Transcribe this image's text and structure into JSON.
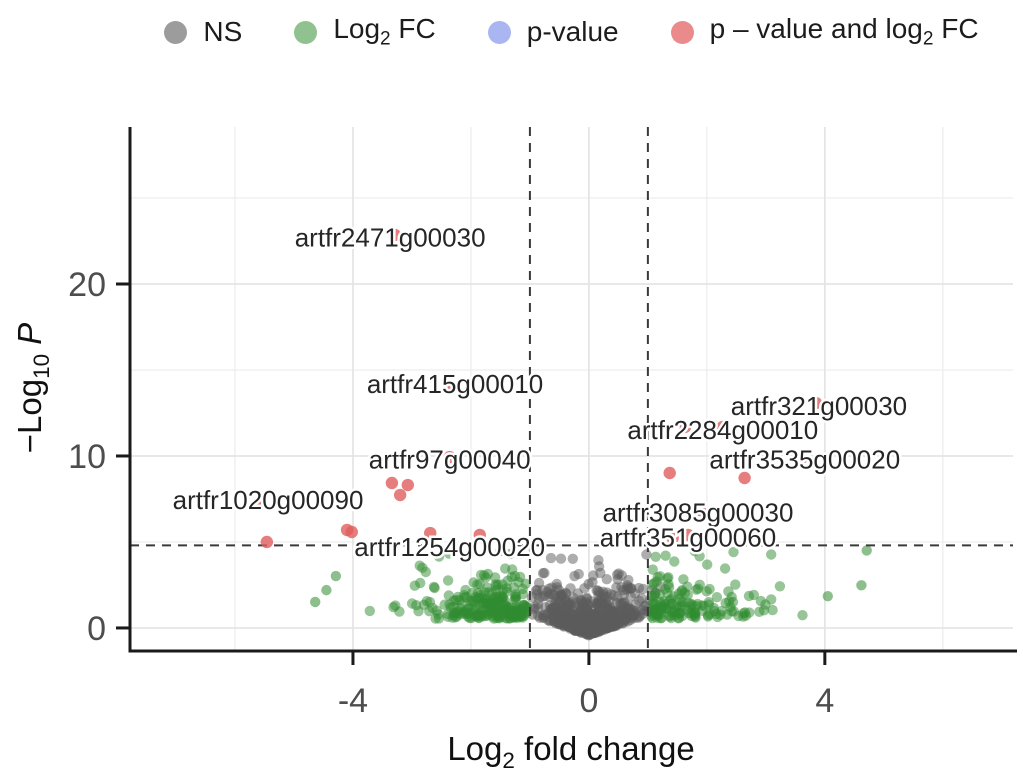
{
  "chart_data": {
    "type": "scatter",
    "subtype": "volcano-plot",
    "title": "",
    "xlabel_segments": [
      {
        "t": "Log"
      },
      {
        "s": "2"
      },
      {
        "t": " fold change"
      }
    ],
    "ylabel_segments": [
      {
        "t": "−Log"
      },
      {
        "s": "10"
      },
      {
        "t": " "
      },
      {
        "i": "P"
      }
    ],
    "xlim": [
      -7.78,
      7.19
    ],
    "ylim": [
      -1.34,
      29.13
    ],
    "x_ticks": [
      {
        "v": -4,
        "label": "-4"
      },
      {
        "v": 0,
        "label": "0"
      },
      {
        "v": 4,
        "label": "4"
      }
    ],
    "y_ticks": [
      {
        "v": 0,
        "label": "0"
      },
      {
        "v": 10,
        "label": "10"
      },
      {
        "v": 20,
        "label": "20"
      }
    ],
    "x_major_grid": [
      -4,
      0,
      4
    ],
    "x_minor_grid": [
      -6,
      -2,
      2,
      6
    ],
    "y_major_grid": [
      0,
      10,
      20
    ],
    "y_minor_grid": [
      5,
      15,
      25
    ],
    "grid": true,
    "thresholds": {
      "vlines": [
        -1,
        1
      ],
      "hline": 4.8
    },
    "legend": {
      "position": "top",
      "items": [
        {
          "key": "ns",
          "segments": [
            {
              "t": "NS"
            }
          ],
          "color": "#9c9c9c"
        },
        {
          "key": "log2fc",
          "segments": [
            {
              "t": "Log"
            },
            {
              "s": "2"
            },
            {
              "t": " FC"
            }
          ],
          "color": "#8fc28f"
        },
        {
          "key": "pvalue",
          "segments": [
            {
              "t": "p-value"
            }
          ],
          "color": "#a9b6f1"
        },
        {
          "key": "p-and-log2fc",
          "segments": [
            {
              "t": "p – value and log"
            },
            {
              "s": "2"
            },
            {
              "t": " FC"
            }
          ],
          "color": "#eb8a8a"
        }
      ]
    },
    "colors": {
      "ns_point": "#5c5c5c",
      "log2fc_point": "#2f8b2f",
      "sig_point": "#e05e5e",
      "grid_major": "#e4e4e4",
      "grid_minor": "#ededed",
      "axis": "#1a1a1a",
      "dashed_line": "#3a3a3a",
      "tick_label": "#4d4d4d",
      "gene_label": "#262626"
    },
    "labeled_genes": [
      {
        "gene": "artfr2471g00030",
        "x": -3.37,
        "y": 22.7
      },
      {
        "gene": "artfr415g00010",
        "x": -2.27,
        "y": 14.2
      },
      {
        "gene": "artfr97g00040",
        "x": -2.36,
        "y": 9.8
      },
      {
        "gene": "artfr1020g00090",
        "x": -5.44,
        "y": 7.45
      },
      {
        "gene": "artfr1254g00020",
        "x": -2.36,
        "y": 4.7
      },
      {
        "gene": "artfr321g00030",
        "x": 3.9,
        "y": 12.9
      },
      {
        "gene": "artfr2284g00010",
        "x": 2.27,
        "y": 11.5
      },
      {
        "gene": "artfr3535g00020",
        "x": 3.66,
        "y": 9.8
      },
      {
        "gene": "artfr3085g00030",
        "x": 1.85,
        "y": 6.7
      },
      {
        "gene": "artfr351g00060",
        "x": 1.68,
        "y": 5.25
      }
    ],
    "significant_points": [
      [
        -3.29,
        22.85
      ],
      [
        -2.31,
        14.01
      ],
      [
        3.85,
        13.08
      ],
      [
        1.63,
        11.69
      ],
      [
        2.27,
        11.69
      ],
      [
        -2.36,
        9.94
      ],
      [
        3.63,
        9.94
      ],
      [
        1.37,
        9.01
      ],
      [
        2.64,
        8.72
      ],
      [
        -3.34,
        8.43
      ],
      [
        -3.07,
        8.31
      ],
      [
        -3.2,
        7.73
      ],
      [
        -5.58,
        7.27
      ],
      [
        1.88,
        6.86
      ],
      [
        1.68,
        5.41
      ],
      [
        1.42,
        5.23
      ],
      [
        -5.46,
        5.0
      ],
      [
        -4.1,
        5.7
      ],
      [
        -4.02,
        5.58
      ],
      [
        -2.69,
        5.52
      ],
      [
        -1.85,
        5.41
      ]
    ],
    "green_outliers": [
      [
        -4.64,
        1.51
      ],
      [
        4.71,
        4.51
      ],
      [
        4.62,
        2.48
      ],
      [
        -4.29,
        3.02
      ],
      [
        4.05,
        1.85
      ],
      [
        -4.45,
        2.2
      ]
    ],
    "point_clouds": [
      {
        "name": "ns-center",
        "color": "ns",
        "count": 640,
        "seed": 11,
        "x": {
          "type": "gauss",
          "mu": 0,
          "sigma": 0.42,
          "min": -1.28,
          "max": 1.28
        },
        "y": {
          "type": "volcano",
          "base": -0.45,
          "slope": 1.25,
          "expo": 0.78,
          "max": 4.3
        }
      },
      {
        "name": "fc-left",
        "color": "log2fc",
        "count": 235,
        "seed": 22,
        "x": {
          "type": "half-gauss",
          "origin": -1.05,
          "sigma": 0.85,
          "dir": -1,
          "min": -4.85,
          "max": -1.05
        },
        "y": {
          "type": "floor-expo",
          "base": 0.55,
          "expo": 0.95,
          "max": 4.55
        }
      },
      {
        "name": "fc-right",
        "color": "log2fc",
        "count": 150,
        "seed": 33,
        "x": {
          "type": "half-gauss",
          "origin": 1.05,
          "sigma": 0.95,
          "dir": 1,
          "min": 1.05,
          "max": 4.9
        },
        "y": {
          "type": "floor-expo",
          "base": 0.55,
          "expo": 0.95,
          "max": 4.6
        }
      }
    ]
  }
}
